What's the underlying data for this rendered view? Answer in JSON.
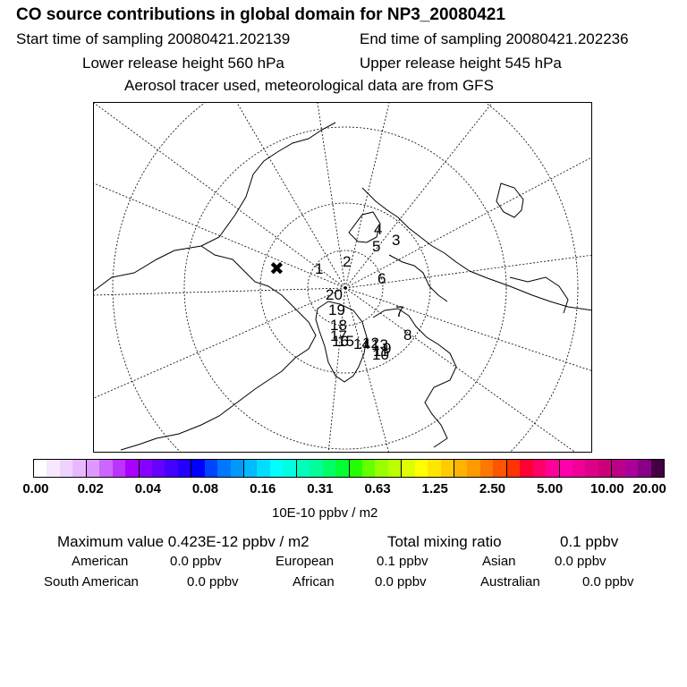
{
  "header": {
    "title": "CO  source contributions in global domain for NP3_20080421",
    "start_time": "Start time of sampling 20080421.202139",
    "end_time": "End time of sampling 20080421.202236",
    "lower_height": "Lower release height  560 hPa",
    "upper_height": "Upper release height  545 hPa",
    "note": "Aerosol tracer used, meteorological data are from GFS"
  },
  "map": {
    "projection": "north polar stereographic",
    "markers": [
      "1",
      "2",
      "3",
      "4",
      "5",
      "6",
      "7",
      "8",
      "9",
      "10",
      "11",
      "12",
      "13",
      "14",
      "15",
      "16",
      "17",
      "18",
      "19",
      "20"
    ],
    "source_symbol": "✖"
  },
  "colorbar": {
    "colors": [
      "#ffffff",
      "#f7e8ff",
      "#f0d2ff",
      "#e8b8ff",
      "#dd99ff",
      "#cc66ff",
      "#bb33ff",
      "#aa00ff",
      "#8800ff",
      "#6600ff",
      "#4400ff",
      "#2200ff",
      "#0000ff",
      "#0044ff",
      "#0077ff",
      "#0099ff",
      "#00bbff",
      "#00ddff",
      "#00ffff",
      "#00ffe0",
      "#00ffbb",
      "#00ff99",
      "#00ff66",
      "#00ff33",
      "#22ff00",
      "#66ff00",
      "#99ff00",
      "#bbff00",
      "#ddff00",
      "#ffff00",
      "#ffe600",
      "#ffcc00",
      "#ffb300",
      "#ff9900",
      "#ff7700",
      "#ff5500",
      "#ff3300",
      "#ff0033",
      "#ff0066",
      "#ff0099",
      "#ff00aa",
      "#ee0099",
      "#dd0088",
      "#cc0077",
      "#bb0088",
      "#aa0099",
      "#880088",
      "#440044"
    ],
    "ticks": [
      "0.00",
      "0.02",
      "0.04",
      "0.08",
      "0.16",
      "0.31",
      "0.63",
      "1.25",
      "2.50",
      "5.00",
      "10.00",
      "20.00"
    ],
    "units": "10E-10 ppbv / m2"
  },
  "stats": {
    "maximum_value": "Maximum value  0.423E-12 ppbv / m2",
    "total_mixing_ratio_label": "Total mixing ratio",
    "total_mixing_ratio_value": "0.1 ppbv",
    "regions": [
      {
        "name": "American",
        "value": "0.0 ppbv"
      },
      {
        "name": "European",
        "value": "0.1 ppbv"
      },
      {
        "name": "Asian",
        "value": "0.0 ppbv"
      },
      {
        "name": "South American",
        "value": "0.0 ppbv"
      },
      {
        "name": "African",
        "value": "0.0 ppbv"
      },
      {
        "name": "Australian",
        "value": "0.0 ppbv"
      }
    ]
  }
}
